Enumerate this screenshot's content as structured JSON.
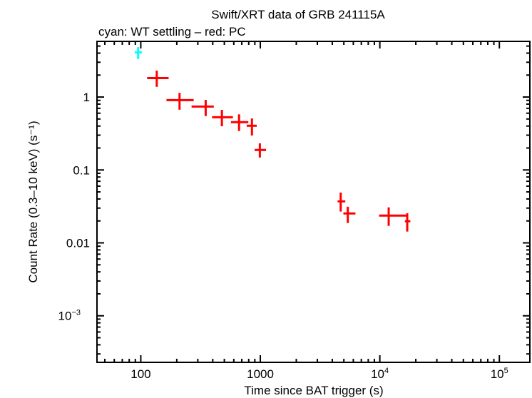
{
  "chart_data": {
    "type": "scatter",
    "title": "Swift/XRT data of GRB 241115A",
    "subtitle": "cyan: WT settling – red: PC",
    "xlabel": "Time since BAT trigger (s)",
    "ylabel": "Count Rate (0.3–10 keV) (s⁻¹)",
    "xscale": "log",
    "yscale": "log",
    "xlim": [
      43,
      180000
    ],
    "ylim": [
      0.00023,
      5.8
    ],
    "x_ticks": [
      {
        "value": 100,
        "label": "100",
        "sup": ""
      },
      {
        "value": 1000,
        "label": "1000",
        "sup": ""
      },
      {
        "value": 10000,
        "label": "10",
        "sup": "4"
      },
      {
        "value": 100000,
        "label": "10",
        "sup": "5"
      }
    ],
    "y_ticks": [
      {
        "value": 1,
        "label": "1",
        "sup": ""
      },
      {
        "value": 0.1,
        "label": "0.1",
        "sup": ""
      },
      {
        "value": 0.01,
        "label": "0.01",
        "sup": ""
      },
      {
        "value": 0.001,
        "label": "10",
        "sup": "−3"
      }
    ],
    "grid": false,
    "series": [
      {
        "color": "#00ffff",
        "points": [
          {
            "t": 95,
            "t_lo": 89,
            "t_hi": 102,
            "rate": 4.1,
            "rate_lo": 3.32,
            "rate_hi": 4.83
          }
        ]
      },
      {
        "color": "#ff0000",
        "points": [
          {
            "t": 136,
            "t_lo": 113,
            "t_hi": 171,
            "rate": 1.82,
            "rate_lo": 1.38,
            "rate_hi": 2.3
          },
          {
            "t": 211,
            "t_lo": 164,
            "t_hi": 277,
            "rate": 0.908,
            "rate_lo": 0.67,
            "rate_hi": 1.14
          },
          {
            "t": 349,
            "t_lo": 266,
            "t_hi": 408,
            "rate": 0.741,
            "rate_lo": 0.548,
            "rate_hi": 0.914
          },
          {
            "t": 477,
            "t_lo": 395,
            "t_hi": 590,
            "rate": 0.529,
            "rate_lo": 0.397,
            "rate_hi": 0.667
          },
          {
            "t": 664,
            "t_lo": 568,
            "t_hi": 794,
            "rate": 0.452,
            "rate_lo": 0.342,
            "rate_hi": 0.579
          },
          {
            "t": 851,
            "t_lo": 769,
            "t_hi": 933,
            "rate": 0.404,
            "rate_lo": 0.297,
            "rate_hi": 0.509
          },
          {
            "t": 991,
            "t_lo": 896,
            "t_hi": 1117,
            "rate": 0.188,
            "rate_lo": 0.148,
            "rate_hi": 0.232
          },
          {
            "t": 4705,
            "t_lo": 4436,
            "t_hi": 5140,
            "rate": 0.0371,
            "rate_lo": 0.0269,
            "rate_hi": 0.049
          },
          {
            "t": 5395,
            "t_lo": 4955,
            "t_hi": 6250,
            "rate": 0.0253,
            "rate_lo": 0.0187,
            "rate_hi": 0.0313
          },
          {
            "t": 11860,
            "t_lo": 9860,
            "t_hi": 16900,
            "rate": 0.0237,
            "rate_lo": 0.0171,
            "rate_hi": 0.0307
          },
          {
            "t": 16950,
            "t_lo": 16200,
            "t_hi": 18000,
            "rate": 0.0198,
            "rate_lo": 0.0143,
            "rate_hi": 0.0255
          }
        ]
      }
    ]
  }
}
